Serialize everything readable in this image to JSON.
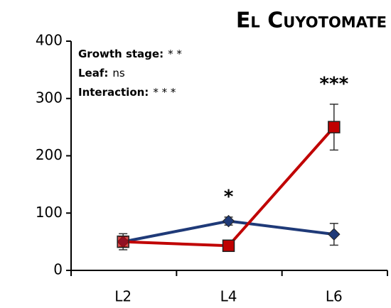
{
  "chart_data": {
    "type": "line",
    "title": "El Cuyotomate",
    "categories": [
      "L2",
      "L4",
      "L6"
    ],
    "series": [
      {
        "color": "#1f3a78",
        "marker": "diamond",
        "values": [
          50,
          86,
          63
        ],
        "errors": [
          14,
          7,
          19
        ]
      },
      {
        "color": "#c00000",
        "marker": "square",
        "values": [
          50,
          43,
          250
        ],
        "errors": [
          9,
          5,
          40
        ]
      }
    ],
    "ylim": [
      0,
      400
    ],
    "yticks": [
      0,
      100,
      200,
      300,
      400
    ],
    "annotations": [
      {
        "label": "Growth stage:",
        "value": "* *"
      },
      {
        "label": "Leaf:",
        "value": "ns"
      },
      {
        "label": "Interaction:",
        "value": "* * *"
      }
    ],
    "significance": [
      null,
      "*",
      "***"
    ]
  }
}
